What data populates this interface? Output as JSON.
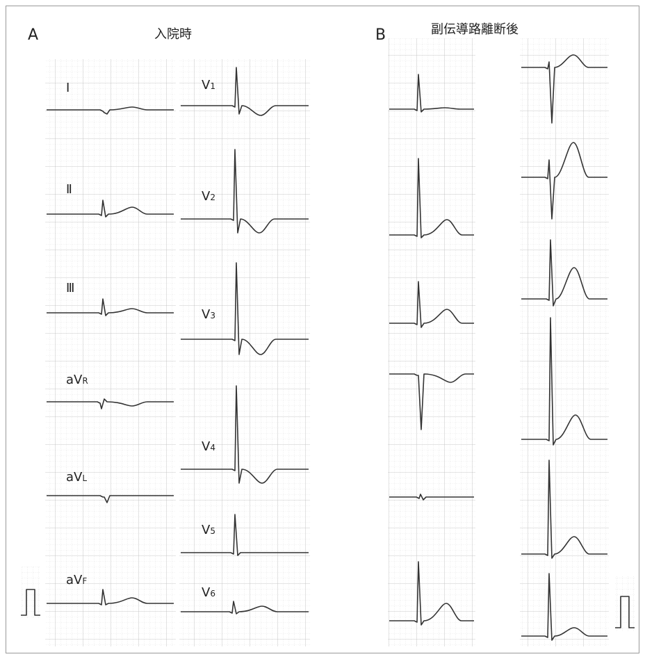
{
  "panels": [
    {
      "label": "A",
      "title": "入院時",
      "leads": [
        {
          "name": "Ⅰ"
        },
        {
          "name": "Ⅱ"
        },
        {
          "name": "Ⅲ"
        },
        {
          "name": "aV",
          "sub": "R"
        },
        {
          "name": "aV",
          "sub": "L"
        },
        {
          "name": "aV",
          "sub": "F"
        },
        {
          "name": "V",
          "sub": "1"
        },
        {
          "name": "V",
          "sub": "2"
        },
        {
          "name": "V",
          "sub": "3"
        },
        {
          "name": "V",
          "sub": "4"
        },
        {
          "name": "V",
          "sub": "5"
        },
        {
          "name": "V",
          "sub": "6"
        }
      ]
    },
    {
      "label": "B",
      "title": "副伝導路離断後"
    }
  ]
}
